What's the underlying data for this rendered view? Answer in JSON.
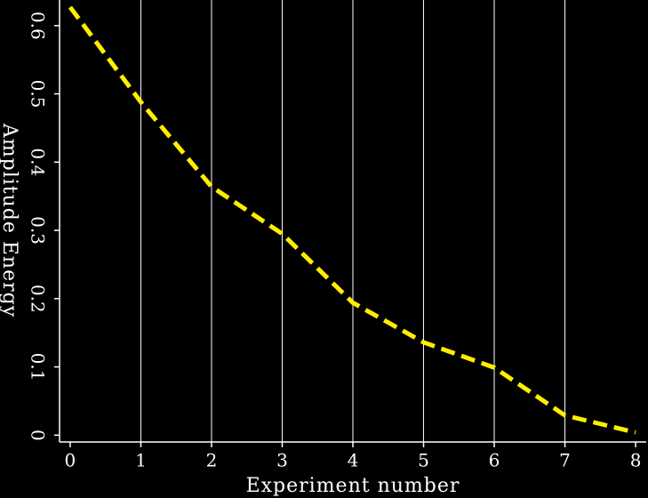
{
  "chart_data": {
    "type": "line",
    "x_label": "Experiment number",
    "y_label": "Amplitude Energy",
    "x": [
      0,
      1,
      2,
      3,
      4,
      5,
      6,
      7,
      8
    ],
    "series": [
      {
        "color": "#ffee00",
        "values": [
          0.627,
          0.488,
          0.364,
          0.295,
          0.194,
          0.136,
          0.099,
          0.029,
          0.004
        ]
      }
    ],
    "xlim": [
      -0.15,
      8.15
    ],
    "ylim": [
      -0.01,
      0.6375
    ],
    "xticks": [
      0,
      1,
      2,
      3,
      4,
      5,
      6,
      7,
      8
    ],
    "yticks": [
      0,
      0.1,
      0.2,
      0.3,
      0.4,
      0.5,
      0.6
    ],
    "grid": true
  }
}
